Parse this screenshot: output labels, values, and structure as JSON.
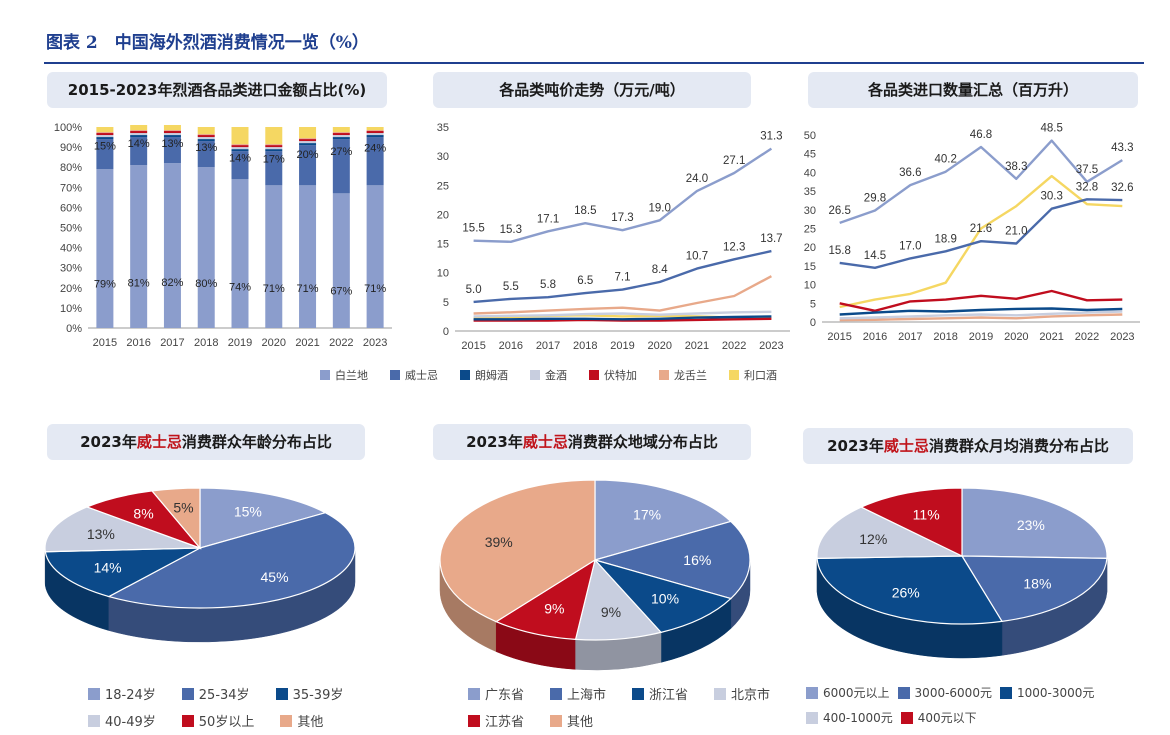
{
  "figure_title": "图表 2　中国海外烈酒消费情况一览（%）",
  "panels": {
    "share_title": "2015-2023年烈酒各品类进口金额占比(%)",
    "price_title": "各品类吨价走势（万元/吨）",
    "volume_title": "各品类进口数量汇总（百万升）",
    "age_title_pre": "2023年",
    "age_title_hl": "威士忌",
    "age_title_post": "消费群众年龄分布占比",
    "region_title_pre": "2023年",
    "region_title_hl": "威士忌",
    "region_title_post": "消费群众地域分布占比",
    "spend_title_pre": "2023年",
    "spend_title_hl": "威士忌",
    "spend_title_post": "消费群众月均消费分布占比"
  },
  "category_legend": [
    {
      "name": "白兰地",
      "color": "#8b9dcc"
    },
    {
      "name": "威士忌",
      "color": "#4a6aaa"
    },
    {
      "name": "朗姆酒",
      "color": "#0b4a8a"
    },
    {
      "name": "金酒",
      "color": "#c8cedf"
    },
    {
      "name": "伏特加",
      "color": "#c00d1e"
    },
    {
      "name": "龙舌兰",
      "color": "#e8a98a"
    },
    {
      "name": "利口酒",
      "color": "#f5d762"
    }
  ],
  "chart_data": [
    {
      "type": "bar",
      "stacked": true,
      "categories": [
        "2015",
        "2016",
        "2017",
        "2018",
        "2019",
        "2020",
        "2021",
        "2022",
        "2023"
      ],
      "ylim": [
        0,
        100
      ],
      "y_ticks": [
        "0%",
        "10%",
        "20%",
        "30%",
        "40%",
        "50%",
        "60%",
        "70%",
        "80%",
        "90%",
        "100%"
      ],
      "series": [
        {
          "name": "白兰地",
          "values": [
            79,
            81,
            82,
            80,
            74,
            71,
            71,
            67,
            71
          ],
          "labels": [
            "79%",
            "81%",
            "82%",
            "80%",
            "74%",
            "71%",
            "71%",
            "67%",
            "71%"
          ]
        },
        {
          "name": "威士忌",
          "values": [
            15,
            14,
            13,
            13,
            14,
            17,
            20,
            27,
            24
          ],
          "labels": [
            "15%",
            "14%",
            "13%",
            "13%",
            "14%",
            "17%",
            "20%",
            "27%",
            "24%"
          ]
        },
        {
          "name": "朗姆酒",
          "values": [
            1,
            1,
            1,
            1,
            1,
            1,
            1,
            1,
            1
          ]
        },
        {
          "name": "金酒",
          "values": [
            1,
            1,
            1,
            1,
            1,
            1,
            1,
            1,
            1
          ]
        },
        {
          "name": "伏特加",
          "values": [
            1,
            1,
            1,
            1,
            1,
            1,
            1,
            1,
            1
          ]
        },
        {
          "name": "龙舌兰",
          "values": [
            0.5,
            0.5,
            0.5,
            0.5,
            0.5,
            0.5,
            0.5,
            0.5,
            0.5
          ]
        },
        {
          "name": "利口酒",
          "values": [
            2.5,
            2.5,
            2.5,
            3.5,
            8.5,
            8.5,
            5.5,
            2.5,
            1.5
          ]
        }
      ]
    },
    {
      "type": "line",
      "x": [
        "2015",
        "2016",
        "2017",
        "2018",
        "2019",
        "2020",
        "2021",
        "2022",
        "2023"
      ],
      "ylim": [
        0,
        35
      ],
      "y_ticks": [
        "0",
        "5",
        "10",
        "15",
        "20",
        "25",
        "30",
        "35"
      ],
      "series": [
        {
          "name": "白兰地",
          "values": [
            15.5,
            15.3,
            17.1,
            18.5,
            17.3,
            19.0,
            24.0,
            27.1,
            31.3
          ],
          "labels": [
            "15.5",
            "15.3",
            "17.1",
            "18.5",
            "17.3",
            "19.0",
            "24.0",
            "27.1",
            "31.3"
          ]
        },
        {
          "name": "威士忌",
          "values": [
            5.0,
            5.5,
            5.8,
            6.5,
            7.1,
            8.4,
            10.7,
            12.3,
            13.7
          ],
          "labels": [
            "5.0",
            "5.5",
            "5.8",
            "6.5",
            "7.1",
            "8.4",
            "10.7",
            "12.3",
            "13.7"
          ]
        },
        {
          "name": "朗姆酒",
          "values": [
            2.0,
            2.0,
            2.1,
            2.1,
            2.0,
            2.1,
            2.3,
            2.4,
            2.5
          ]
        },
        {
          "name": "金酒",
          "values": [
            2.5,
            2.6,
            2.7,
            2.9,
            3.0,
            2.8,
            3.0,
            3.2,
            3.3
          ]
        },
        {
          "name": "伏特加",
          "values": [
            1.8,
            1.8,
            1.8,
            1.9,
            1.8,
            1.8,
            1.9,
            2.0,
            2.1
          ]
        },
        {
          "name": "龙舌兰",
          "values": [
            3.0,
            3.2,
            3.5,
            3.8,
            4.0,
            3.5,
            4.8,
            6.0,
            9.4
          ]
        },
        {
          "name": "利口酒",
          "values": [
            2.2,
            2.4,
            2.6,
            2.7,
            2.5,
            2.6,
            2.5,
            2.3,
            2.2
          ]
        }
      ]
    },
    {
      "type": "line",
      "x": [
        "2015",
        "2016",
        "2017",
        "2018",
        "2019",
        "2020",
        "2021",
        "2022",
        "2023"
      ],
      "ylim": [
        0,
        50
      ],
      "y_ticks": [
        "0",
        "5",
        "10",
        "15",
        "20",
        "25",
        "30",
        "35",
        "40",
        "45",
        "50"
      ],
      "series": [
        {
          "name": "白兰地",
          "values": [
            26.5,
            29.8,
            36.6,
            40.2,
            46.8,
            38.3,
            48.5,
            37.5,
            43.3
          ],
          "labels": [
            "26.5",
            "29.8",
            "36.6",
            "40.2",
            "46.8",
            "38.3",
            "48.5",
            "37.5",
            "43.3"
          ]
        },
        {
          "name": "威士忌",
          "values": [
            15.8,
            14.5,
            17.0,
            18.9,
            21.6,
            21.0,
            30.3,
            32.8,
            32.6
          ],
          "labels": [
            "15.8",
            "14.5",
            "17.0",
            "18.9",
            "21.6",
            "21.0",
            "30.3",
            "32.8",
            "32.6"
          ]
        },
        {
          "name": "朗姆酒",
          "values": [
            2.0,
            2.5,
            3.0,
            2.8,
            3.2,
            3.5,
            3.6,
            3.2,
            3.5
          ]
        },
        {
          "name": "金酒",
          "values": [
            1.0,
            1.2,
            1.5,
            1.8,
            2.0,
            1.8,
            2.2,
            2.5,
            2.8
          ]
        },
        {
          "name": "伏特加",
          "values": [
            5.0,
            3.0,
            5.5,
            6.0,
            7.0,
            6.2,
            8.3,
            5.8,
            6.0
          ]
        },
        {
          "name": "龙舌兰",
          "values": [
            0.5,
            0.6,
            0.8,
            1.0,
            1.2,
            1.0,
            1.5,
            1.8,
            2.0
          ]
        },
        {
          "name": "利口酒",
          "values": [
            4.0,
            6.0,
            7.5,
            10.5,
            25.0,
            31.0,
            39.0,
            31.5,
            31.0
          ]
        }
      ]
    },
    {
      "type": "pie",
      "labels": [
        "18-24岁",
        "25-34岁",
        "35-39岁",
        "40-49岁",
        "50岁以上",
        "其他"
      ],
      "values": [
        15,
        45,
        14,
        13,
        8,
        5
      ],
      "value_labels": [
        "15%",
        "45%",
        "14%",
        "13%",
        "8%",
        "5%"
      ],
      "colors": [
        "#8b9dcc",
        "#4a6aaa",
        "#0b4a8a",
        "#c8cedf",
        "#c00d1e",
        "#e8a98a"
      ]
    },
    {
      "type": "pie",
      "labels": [
        "广东省",
        "上海市",
        "浙江省",
        "北京市",
        "江苏省",
        "其他"
      ],
      "values": [
        17,
        16,
        10,
        9,
        9,
        39
      ],
      "value_labels": [
        "17%",
        "16%",
        "10%",
        "9%",
        "9%",
        "39%"
      ],
      "colors": [
        "#8b9dcc",
        "#4a6aaa",
        "#0b4a8a",
        "#c8cedf",
        "#c00d1e",
        "#e8a98a"
      ]
    },
    {
      "type": "pie",
      "labels": [
        "6000元以上",
        "3000-6000元",
        "1000-3000元",
        "400-1000元",
        "400元以下"
      ],
      "values": [
        23,
        18,
        26,
        12,
        11
      ],
      "value_labels": [
        "23%",
        "18%",
        "26%",
        "12%",
        "11%"
      ],
      "colors": [
        "#8b9dcc",
        "#4a6aaa",
        "#0b4a8a",
        "#c8cedf",
        "#c00d1e"
      ]
    }
  ]
}
